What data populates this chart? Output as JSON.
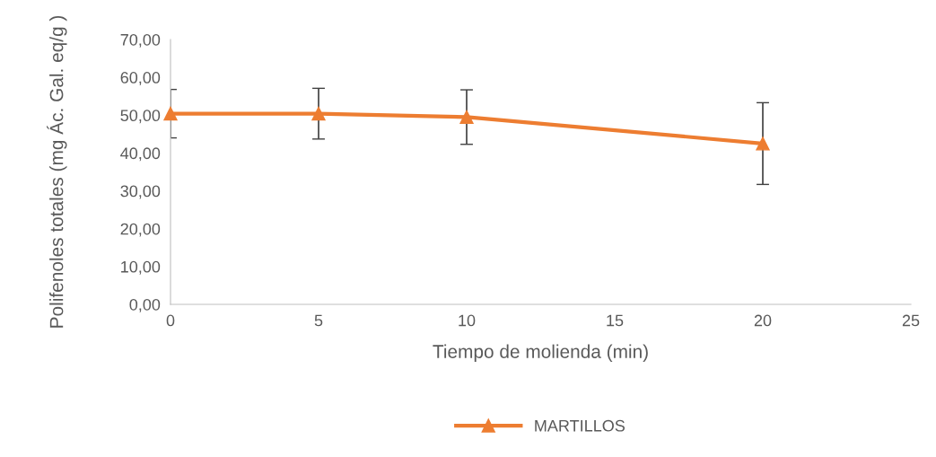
{
  "chart_data": {
    "type": "line",
    "xlabel": "Tiempo de molienda (min)",
    "ylabel": "Polifenoles totales (mg Ác. Gal. eq/g )",
    "x": [
      0,
      5,
      10,
      20
    ],
    "series": [
      {
        "name": "MARTILLOS",
        "color": "#ed7d31",
        "values": [
          50.4,
          50.4,
          49.5,
          42.5
        ],
        "errors": [
          6.4,
          6.7,
          7.2,
          10.8
        ]
      }
    ],
    "xlim": [
      0,
      25
    ],
    "xticks": [
      0,
      5,
      10,
      15,
      20,
      25
    ],
    "ylim": [
      0,
      70
    ],
    "yticks": [
      {
        "value": 0,
        "label": "0,00"
      },
      {
        "value": 10,
        "label": "10,00"
      },
      {
        "value": 20,
        "label": "20,00"
      },
      {
        "value": 30,
        "label": "30,00"
      },
      {
        "value": 40,
        "label": "40,00"
      },
      {
        "value": 50,
        "label": "50,00"
      },
      {
        "value": 60,
        "label": "60,00"
      },
      {
        "value": 70,
        "label": "70,00"
      }
    ],
    "grid": false,
    "legend": "bottom",
    "marker": "triangle",
    "line_style": "solid"
  }
}
